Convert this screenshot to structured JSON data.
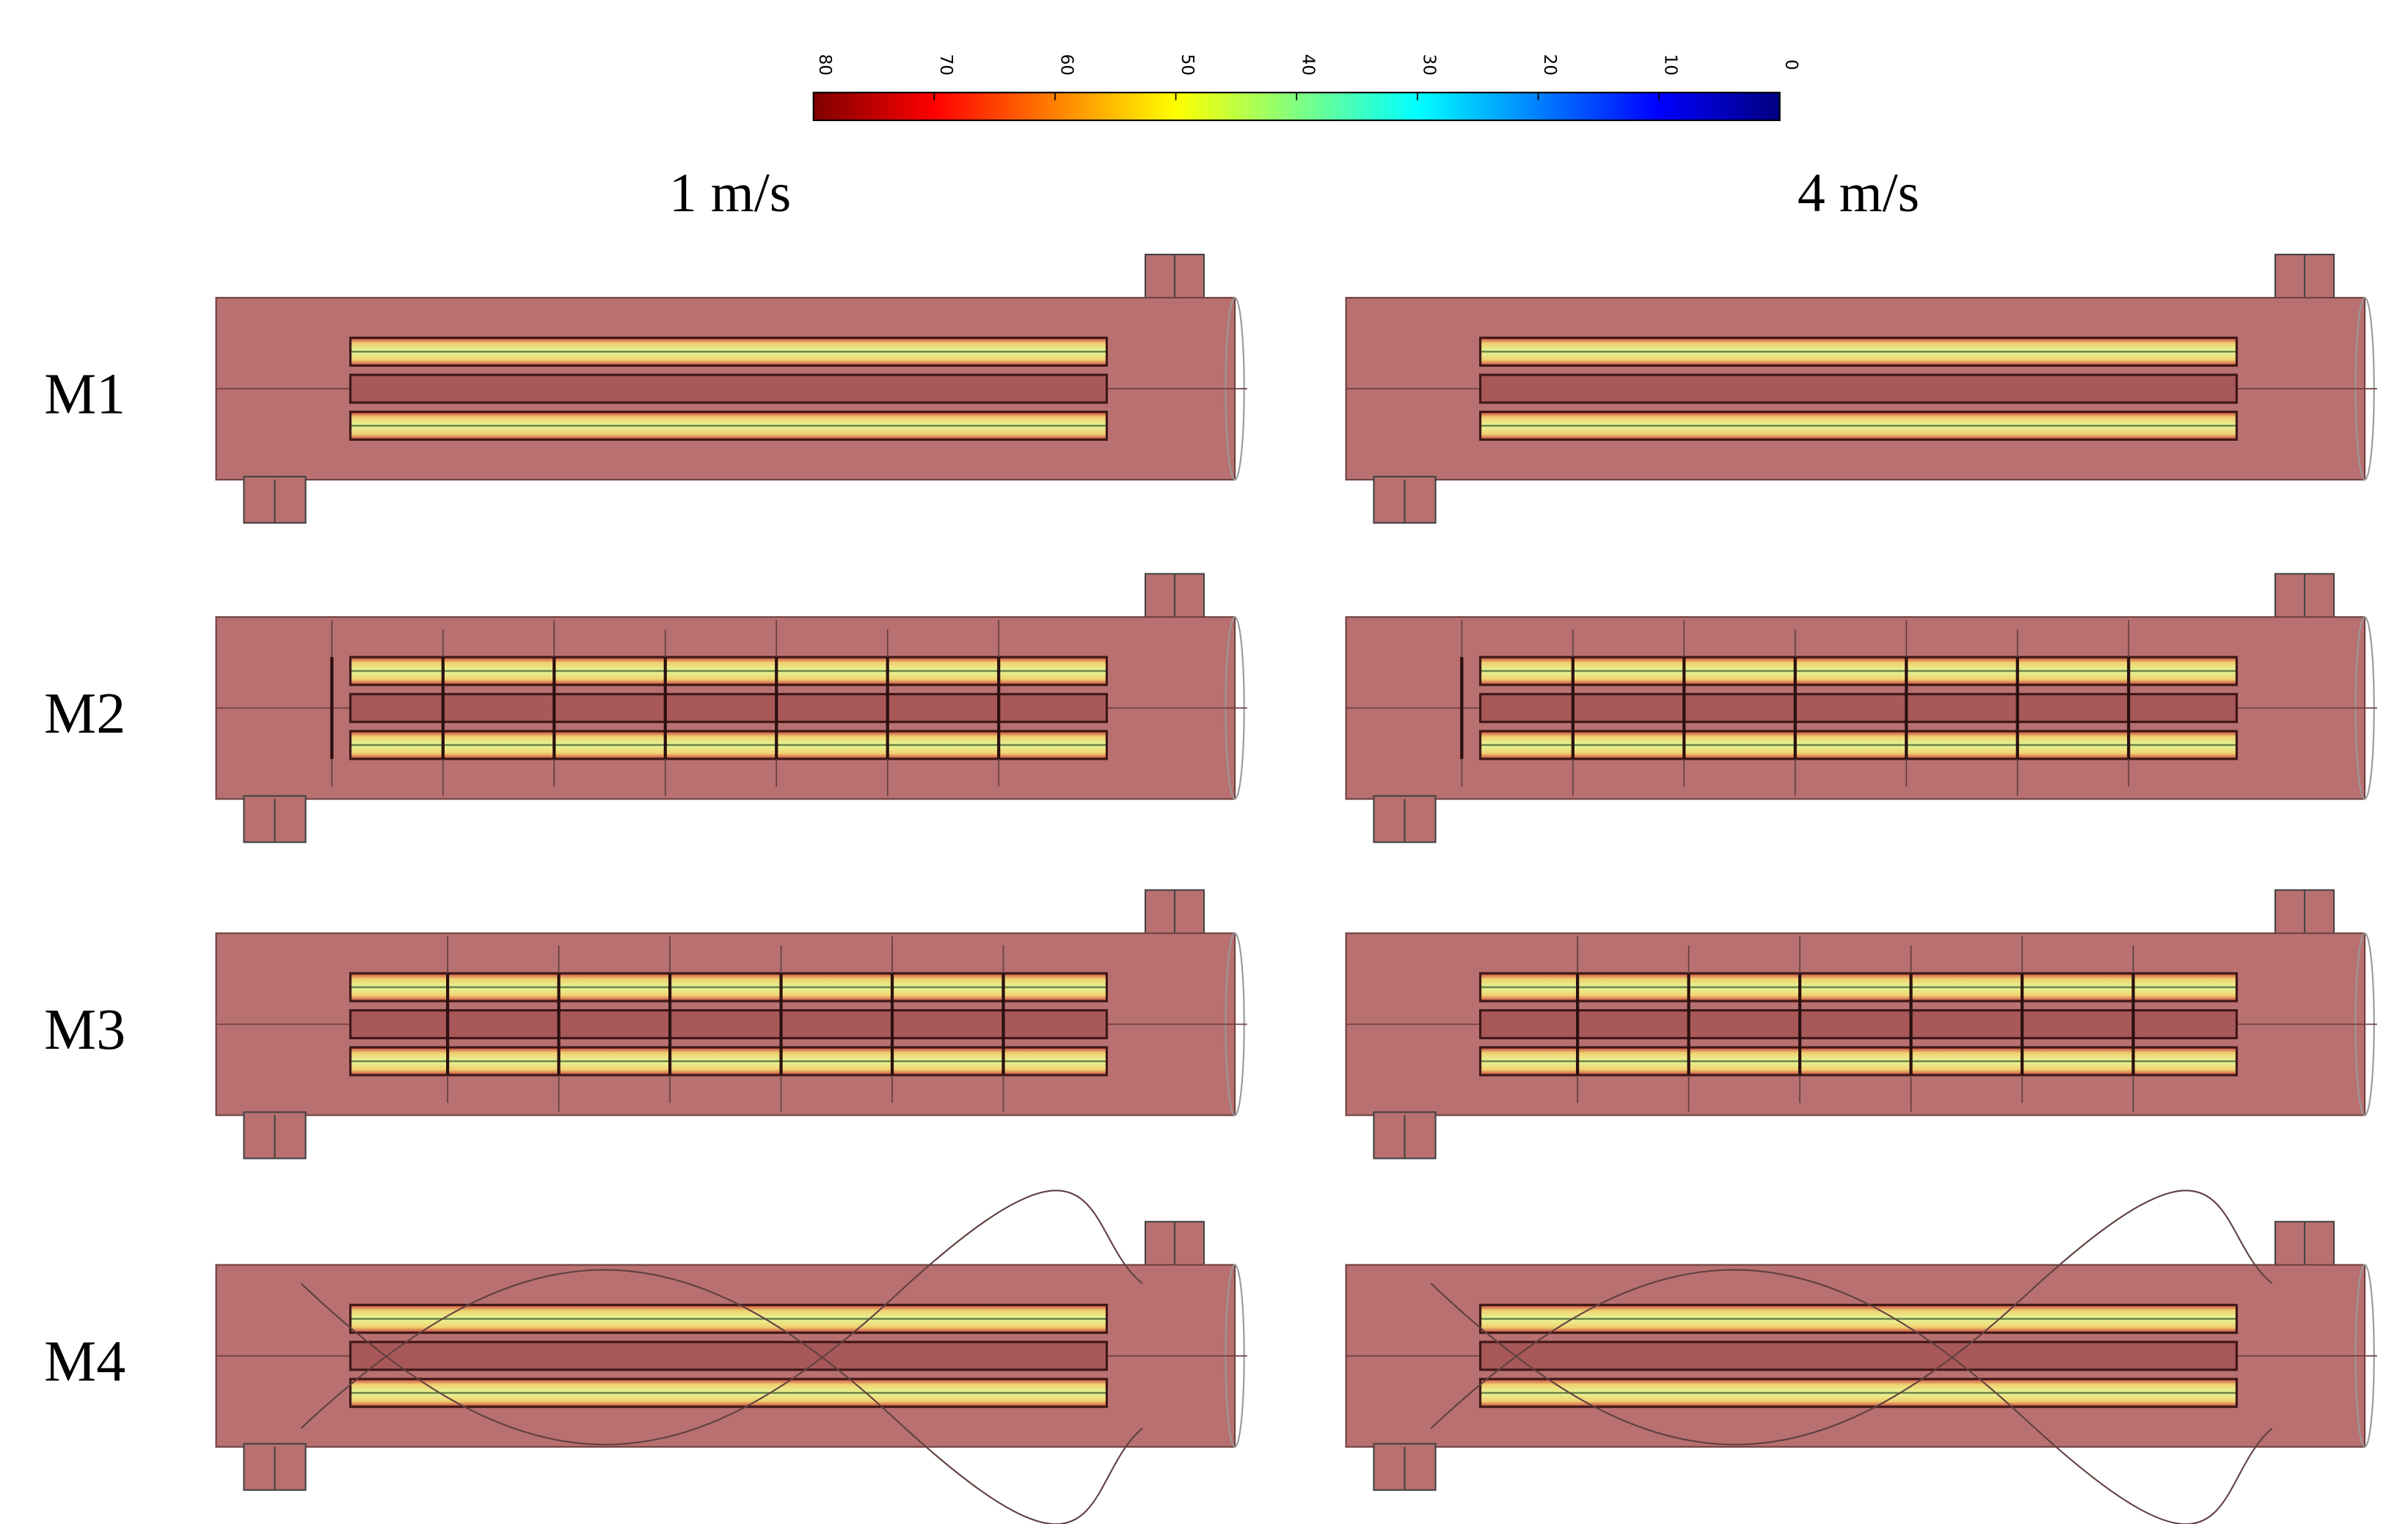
{
  "colorbar": {
    "lim": [
      80,
      0
    ],
    "ticks": [
      80,
      70,
      60,
      50,
      40,
      30,
      20,
      10,
      0
    ]
  },
  "columns": [
    "1 m/s",
    "4 m/s"
  ],
  "rows": [
    "M1",
    "M2",
    "M3",
    "M4"
  ]
}
